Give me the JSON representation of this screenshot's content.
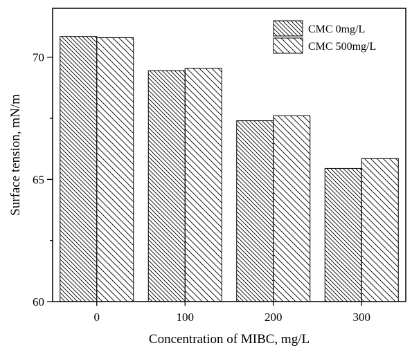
{
  "chart_data": {
    "type": "bar",
    "title": "",
    "xlabel": "Concentration of MIBC, mg/L",
    "ylabel": "Surface tension, mN/m",
    "categories": [
      "0",
      "100",
      "200",
      "300"
    ],
    "series": [
      {
        "name": "CMC 0mg/L",
        "values": [
          70.85,
          69.45,
          67.4,
          65.45
        ],
        "hatch": "backslash-dense"
      },
      {
        "name": "CMC 500mg/L",
        "values": [
          70.8,
          69.55,
          67.6,
          65.85
        ],
        "hatch": "backslash-sparse"
      }
    ],
    "ylim": [
      60,
      72
    ],
    "yticks": [
      60,
      65,
      70
    ],
    "ytick_labels": [
      "60",
      "65",
      "70"
    ],
    "grid": false,
    "legend_position": "top-right",
    "colors": {
      "bar_fill": "#ffffff",
      "stroke": "#000000"
    }
  }
}
